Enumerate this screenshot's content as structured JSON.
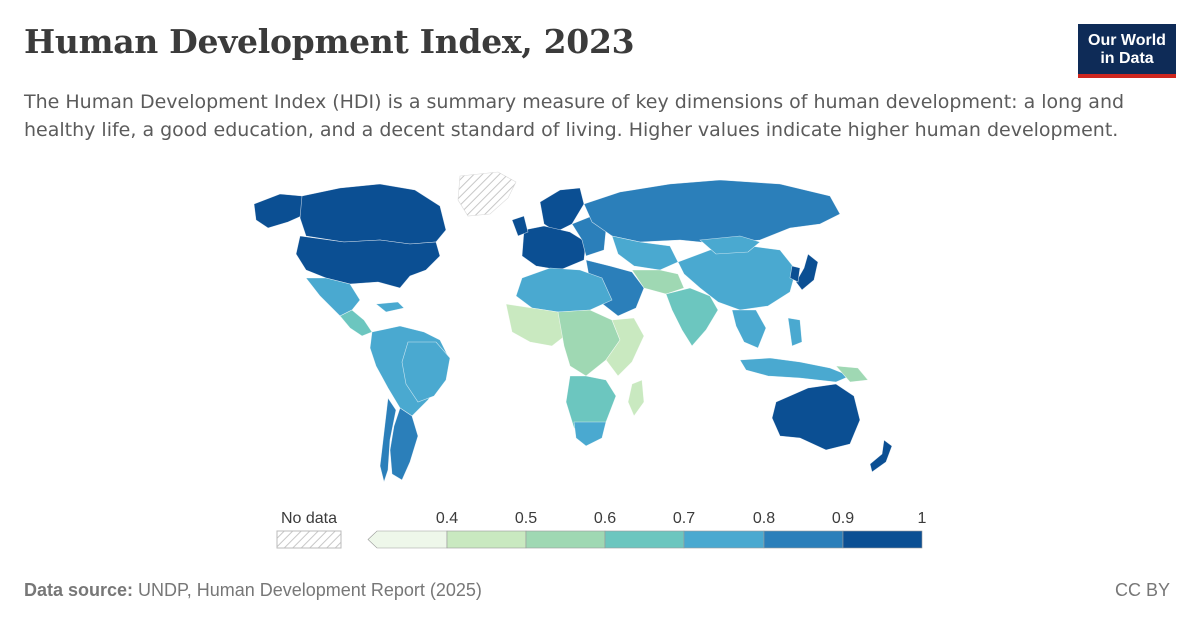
{
  "header": {
    "title": "Human Development Index, 2023",
    "logo_line1": "Our World",
    "logo_line2": "in Data",
    "subtitle": "The Human Development Index (HDI) is a summary measure of key dimensions of human development: a long and healthy life, a good education, and a decent standard of living. Higher values indicate higher human development."
  },
  "legend": {
    "no_data_label": "No data",
    "bins": [
      {
        "label": "0.4",
        "color": "#eef7ea"
      },
      {
        "label": "0.5",
        "color": "#c9e9c0"
      },
      {
        "label": "0.6",
        "color": "#9fd8b3"
      },
      {
        "label": "0.7",
        "color": "#6cc6bf"
      },
      {
        "label": "0.8",
        "color": "#4aa9d0"
      },
      {
        "label": "0.9",
        "color": "#2b7fba"
      },
      {
        "label": "1",
        "color": "#0b4f93"
      }
    ]
  },
  "footer": {
    "source_label": "Data source:",
    "source_text": " UNDP, Human Development Report (2025)",
    "license": "CC BY"
  }
}
